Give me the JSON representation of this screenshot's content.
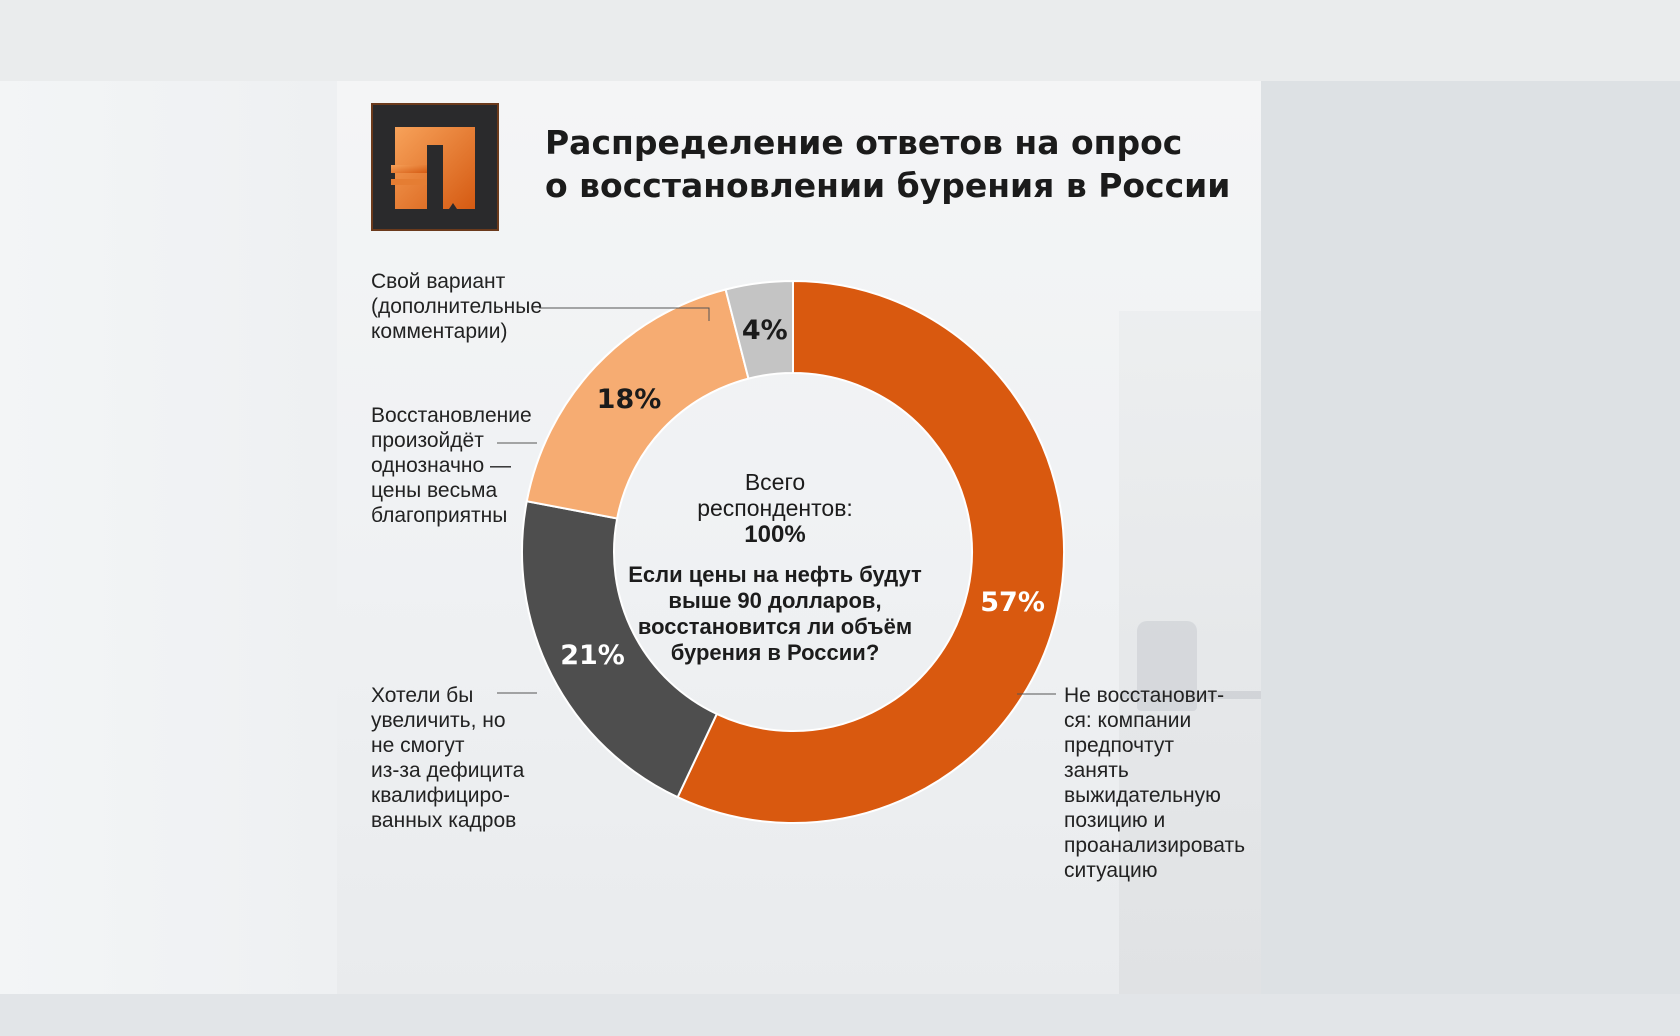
{
  "colors": {
    "accent": "#d9590f",
    "light_orange": "#f6ac72",
    "dark_gray": "#4e4e4e",
    "light_gray": "#c4c4c4",
    "background": "#eff1f3"
  },
  "logo": {
    "icon": "logo-icon",
    "letter": "П"
  },
  "title": {
    "line1": "Распределение ответов на опрос",
    "line2": "о восстановлении бурения в России"
  },
  "center": {
    "total_label": "Всего\nреспондентов:",
    "total_value": "100%",
    "question": "Если цены на нефть будут выше 90 долларов, восстановится ли объём бурения в России?"
  },
  "chart_data": {
    "type": "pie",
    "donut": true,
    "unit": "%",
    "categories": [
      "Не восстановит-\nся: компании\nпредпочтут\nзанять\nвыжидательную\nпозицию и\nпроанализировать\nситуацию",
      "Хотели бы\nувеличить, но\nне смогут\nиз-за дефицита\nквалифициро-\nванных кадров",
      "Восстановление\nпроизойдёт\nоднозначно —\nцены весьма\nблагоприятны",
      "Свой вариант\n(дополнительные\nкомментарии)"
    ],
    "values": [
      57,
      21,
      18,
      4
    ],
    "value_labels": [
      "57%",
      "21%",
      "18%",
      "4%"
    ],
    "colors": [
      "#d9590f",
      "#4e4e4e",
      "#f6ac72",
      "#c4c4c4"
    ],
    "label_colors": [
      "#ffffff",
      "#ffffff",
      "#1b1b1b",
      "#1b1b1b"
    ],
    "start_angle_deg": 0,
    "direction": "clockwise"
  }
}
